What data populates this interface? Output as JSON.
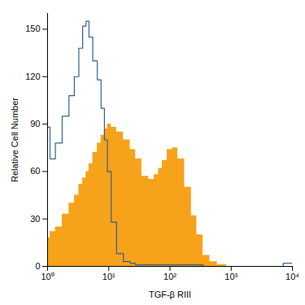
{
  "chart_data": {
    "type": "histogram",
    "x_label": "TGF-β RIII",
    "y_label": "Relative Cell Number",
    "log": "x",
    "grid": false,
    "x": [
      1,
      1.2,
      1.5,
      2,
      2.5,
      3,
      3.5,
      4,
      4.5,
      5,
      6,
      7,
      8,
      9,
      10,
      12,
      15,
      20,
      25,
      30,
      40,
      50,
      60,
      70,
      80,
      100,
      120,
      150,
      200,
      250,
      300,
      400,
      500,
      700,
      1000,
      2000,
      5000,
      10000
    ],
    "series": [
      {
        "type": "area",
        "color": "#f7a21b",
        "values": [
          18,
          22,
          25,
          33,
          40,
          45,
          52,
          56,
          60,
          65,
          72,
          78,
          83,
          87,
          90,
          88,
          85,
          80,
          74,
          68,
          57,
          55,
          58,
          62,
          67,
          74,
          75,
          68,
          50,
          32,
          20,
          7,
          3,
          1,
          0,
          0,
          0,
          0
        ]
      },
      {
        "type": "line",
        "color": "#2b5f8e",
        "values": [
          88,
          68,
          78,
          95,
          108,
          120,
          138,
          152,
          155,
          145,
          130,
          118,
          100,
          80,
          60,
          28,
          8,
          3,
          2,
          1,
          1,
          1,
          1,
          1,
          1,
          1,
          1,
          1,
          1,
          1,
          1,
          0,
          0,
          0,
          0,
          0,
          0,
          2
        ]
      }
    ],
    "xlim": [
      1,
      10000
    ],
    "xticks": [
      {
        "value": 1,
        "label": "10⁰"
      },
      {
        "value": 10,
        "label": "10¹"
      },
      {
        "value": 100,
        "label": "10²"
      },
      {
        "value": 1000,
        "label": "10³"
      },
      {
        "value": 10000,
        "label": "10⁴"
      }
    ],
    "ylim": [
      0,
      160
    ],
    "yticks": [
      0,
      30,
      60,
      90,
      120,
      150
    ]
  }
}
